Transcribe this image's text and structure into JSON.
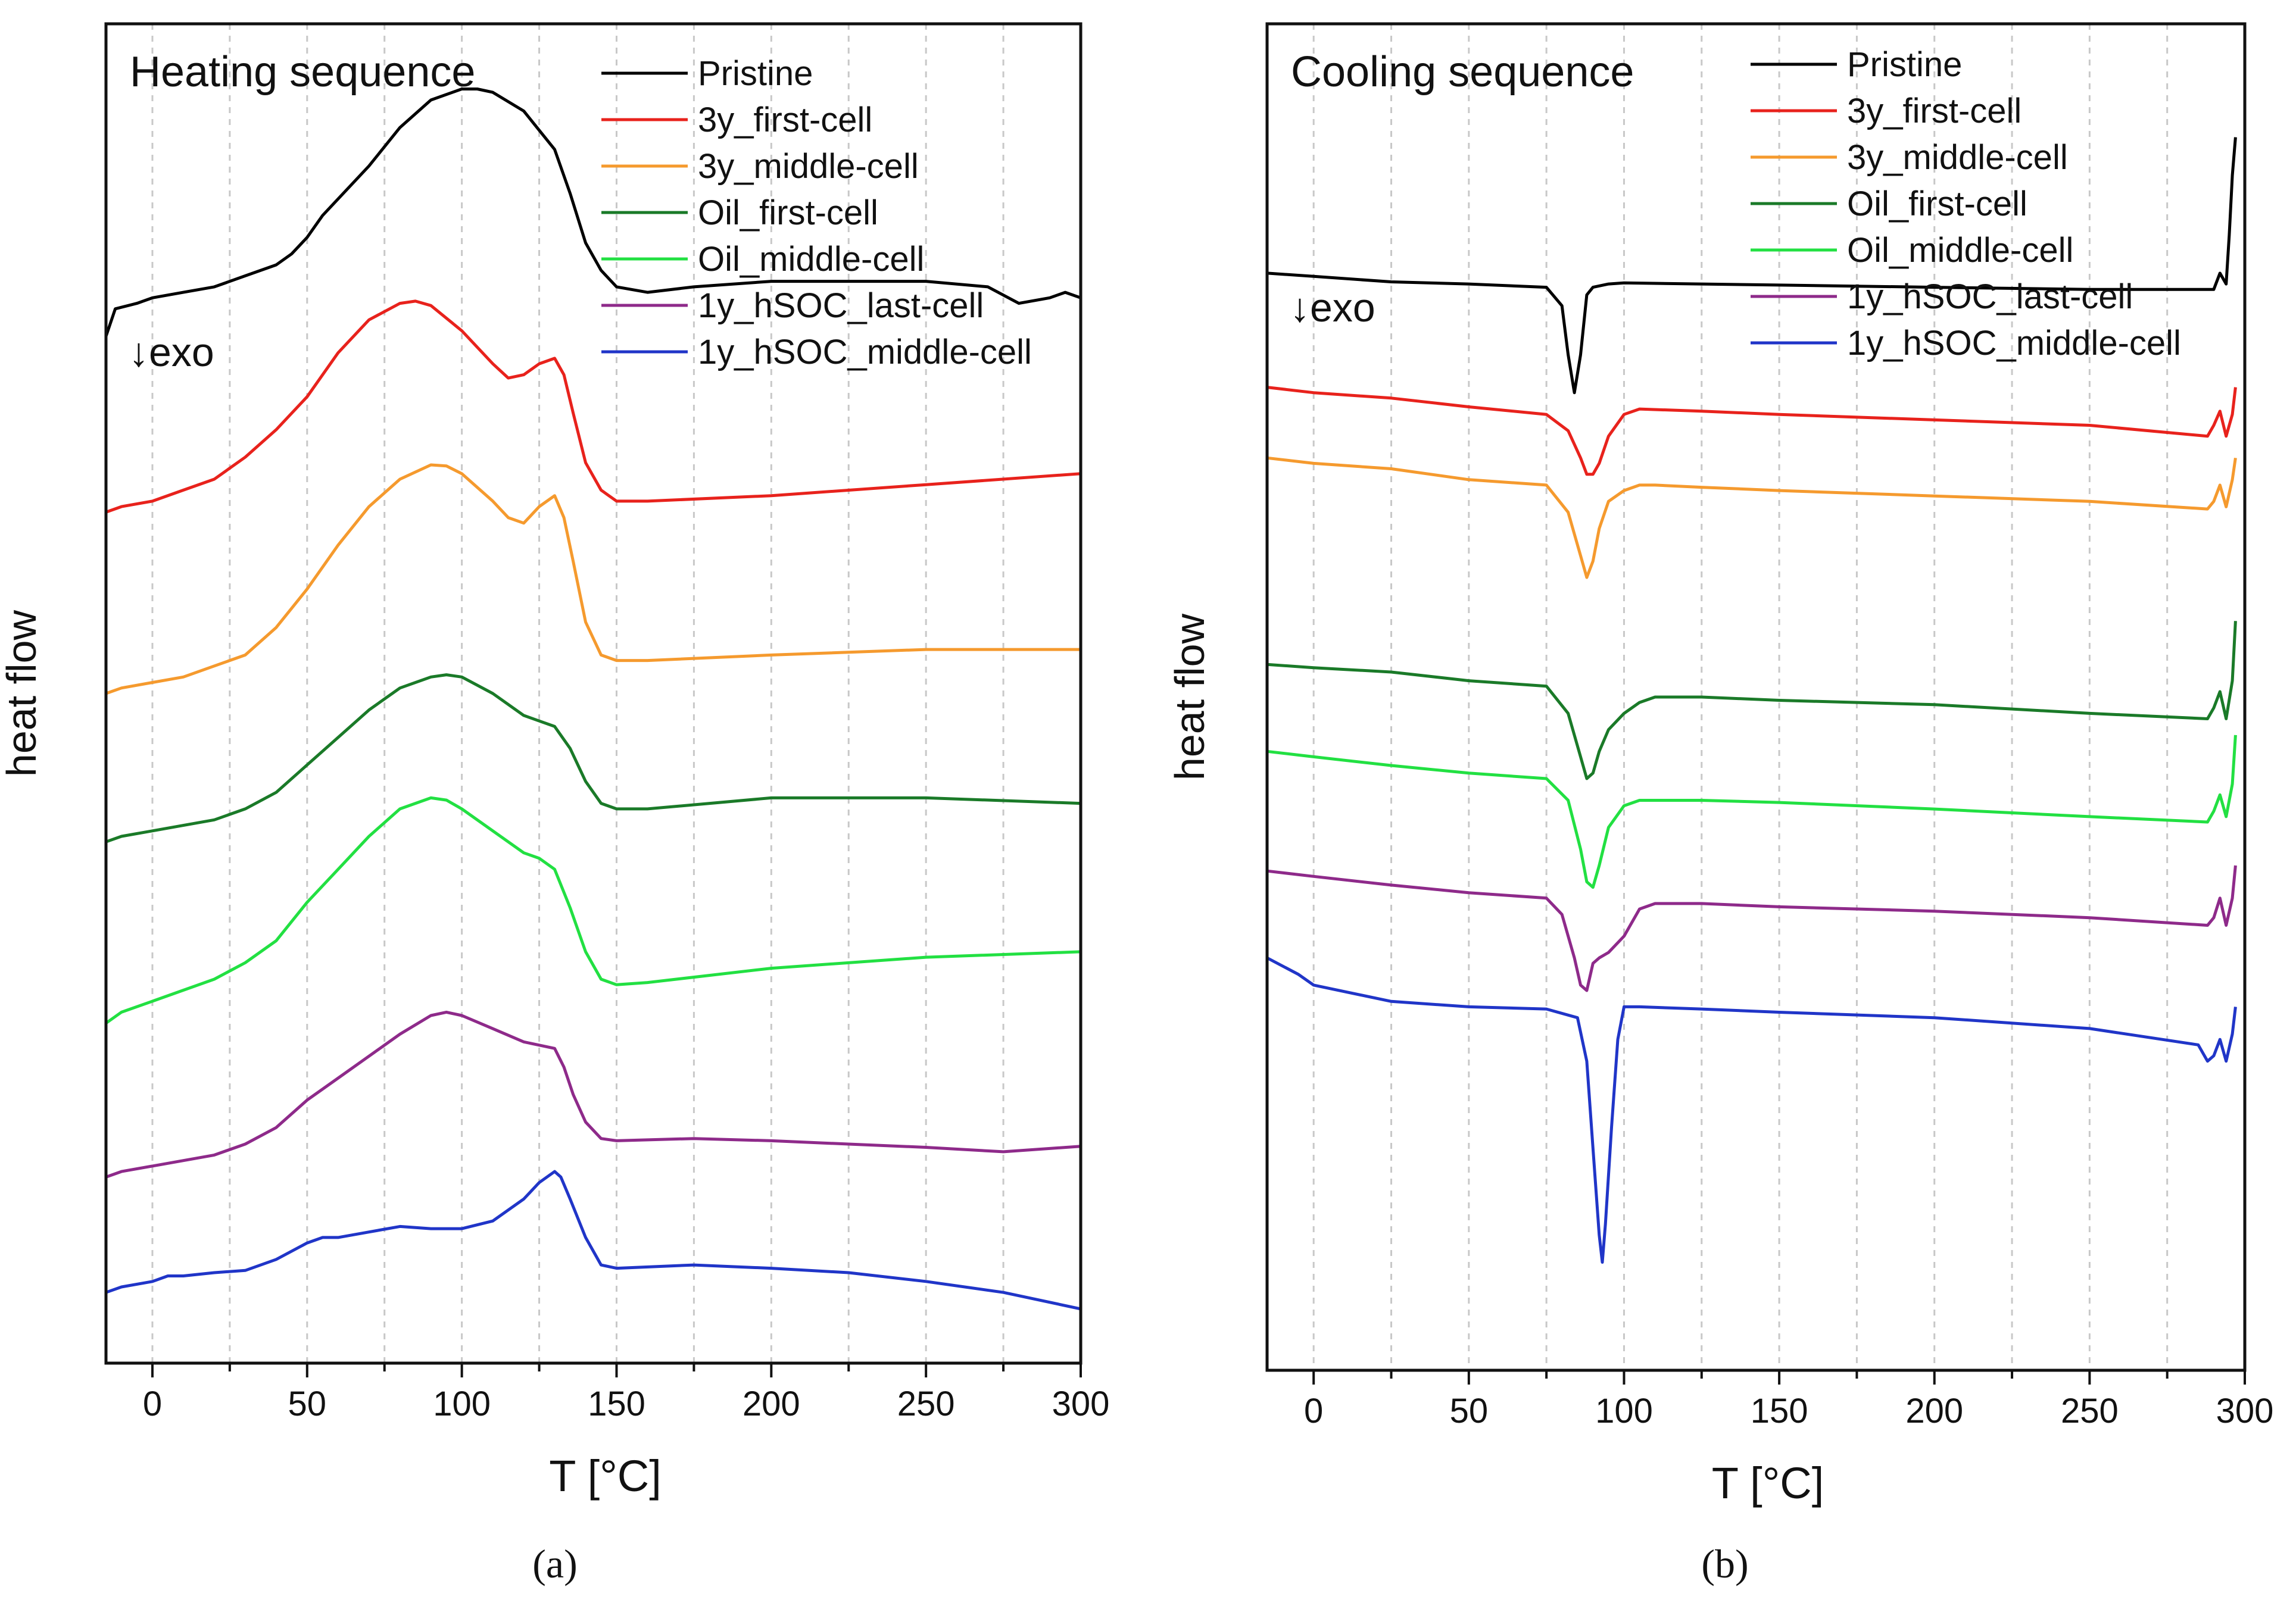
{
  "chart_data": [
    {
      "type": "line",
      "panel": "a",
      "caption": "(a)",
      "title": "Heating sequence",
      "annotation": "↓exo",
      "xlabel": "T [°C]",
      "ylabel": "heat flow",
      "xlim": [
        -15,
        300
      ],
      "xticks": [
        "0",
        "50",
        "100",
        "150",
        "200",
        "250",
        "300"
      ],
      "grid": "vertical dashed",
      "legend_position": "top-right",
      "series": [
        {
          "name": "Pristine",
          "color": "#000000",
          "x": [
            -15,
            -12,
            -5,
            0,
            10,
            20,
            30,
            40,
            45,
            50,
            55,
            60,
            70,
            80,
            90,
            100,
            105,
            110,
            120,
            130,
            135,
            140,
            145,
            150,
            160,
            175,
            200,
            225,
            250,
            270,
            280,
            290,
            295,
            300
          ],
          "y": [
            8.7,
            8.95,
            9.0,
            9.05,
            9.1,
            9.15,
            9.25,
            9.35,
            9.45,
            9.6,
            9.8,
            9.95,
            10.25,
            10.6,
            10.85,
            10.95,
            10.95,
            10.92,
            10.75,
            10.4,
            10.0,
            9.55,
            9.3,
            9.15,
            9.1,
            9.15,
            9.2,
            9.2,
            9.2,
            9.15,
            9.0,
            9.05,
            9.1,
            9.05
          ]
        },
        {
          "name": "3y_first-cell",
          "color": "#e8221c",
          "x": [
            -15,
            -10,
            0,
            10,
            20,
            30,
            40,
            50,
            60,
            70,
            80,
            85,
            90,
            100,
            110,
            115,
            120,
            125,
            130,
            133,
            136,
            140,
            145,
            150,
            160,
            200,
            250,
            300
          ],
          "y": [
            7.1,
            7.15,
            7.2,
            7.3,
            7.4,
            7.6,
            7.85,
            8.15,
            8.55,
            8.85,
            9.0,
            9.02,
            8.98,
            8.75,
            8.45,
            8.32,
            8.35,
            8.45,
            8.5,
            8.35,
            8.0,
            7.55,
            7.3,
            7.2,
            7.2,
            7.25,
            7.35,
            7.45
          ]
        },
        {
          "name": "3y_middle-cell",
          "color": "#f59a2e",
          "x": [
            -15,
            -10,
            0,
            10,
            20,
            30,
            40,
            50,
            60,
            70,
            80,
            90,
            95,
            100,
            110,
            115,
            120,
            125,
            130,
            133,
            136,
            140,
            145,
            150,
            160,
            200,
            250,
            300
          ],
          "y": [
            5.45,
            5.5,
            5.55,
            5.6,
            5.7,
            5.8,
            6.05,
            6.4,
            6.8,
            7.15,
            7.4,
            7.53,
            7.52,
            7.45,
            7.2,
            7.05,
            7.0,
            7.15,
            7.25,
            7.05,
            6.65,
            6.1,
            5.8,
            5.75,
            5.75,
            5.8,
            5.85,
            5.85
          ]
        },
        {
          "name": "Oil_first-cell",
          "color": "#1a7a28",
          "x": [
            -15,
            -10,
            0,
            10,
            20,
            30,
            40,
            50,
            60,
            70,
            80,
            90,
            95,
            100,
            110,
            120,
            125,
            130,
            135,
            140,
            145,
            150,
            160,
            200,
            250,
            300
          ],
          "y": [
            4.1,
            4.15,
            4.2,
            4.25,
            4.3,
            4.4,
            4.55,
            4.8,
            5.05,
            5.3,
            5.5,
            5.6,
            5.62,
            5.6,
            5.45,
            5.25,
            5.2,
            5.15,
            4.95,
            4.65,
            4.45,
            4.4,
            4.4,
            4.5,
            4.5,
            4.45
          ]
        },
        {
          "name": "Oil_middle-cell",
          "color": "#22e042",
          "x": [
            -15,
            -10,
            0,
            10,
            20,
            30,
            40,
            50,
            60,
            70,
            80,
            90,
            95,
            100,
            110,
            120,
            125,
            130,
            135,
            140,
            145,
            150,
            160,
            200,
            250,
            300
          ],
          "y": [
            2.45,
            2.55,
            2.65,
            2.75,
            2.85,
            3.0,
            3.2,
            3.55,
            3.85,
            4.15,
            4.4,
            4.5,
            4.48,
            4.4,
            4.2,
            4.0,
            3.95,
            3.85,
            3.5,
            3.1,
            2.85,
            2.8,
            2.82,
            2.95,
            3.05,
            3.1
          ]
        },
        {
          "name": "1y_hSOC_last-cell",
          "color": "#8e2a8a",
          "x": [
            -15,
            -10,
            0,
            10,
            20,
            30,
            40,
            50,
            60,
            70,
            80,
            90,
            95,
            100,
            110,
            120,
            125,
            130,
            133,
            136,
            140,
            145,
            150,
            175,
            200,
            225,
            250,
            275,
            300
          ],
          "y": [
            1.05,
            1.1,
            1.15,
            1.2,
            1.25,
            1.35,
            1.5,
            1.75,
            1.95,
            2.15,
            2.35,
            2.52,
            2.55,
            2.52,
            2.4,
            2.28,
            2.25,
            2.22,
            2.05,
            1.8,
            1.55,
            1.4,
            1.38,
            1.4,
            1.38,
            1.35,
            1.32,
            1.28,
            1.33
          ]
        },
        {
          "name": "1y_hSOC_middle-cell",
          "color": "#2035c8",
          "x": [
            -15,
            -10,
            0,
            5,
            10,
            20,
            30,
            40,
            50,
            55,
            60,
            70,
            80,
            90,
            100,
            110,
            120,
            125,
            130,
            132,
            135,
            140,
            145,
            150,
            175,
            200,
            225,
            250,
            275,
            300
          ],
          "y": [
            0.0,
            0.05,
            0.1,
            0.15,
            0.15,
            0.18,
            0.2,
            0.3,
            0.45,
            0.5,
            0.5,
            0.55,
            0.6,
            0.58,
            0.58,
            0.65,
            0.85,
            1.0,
            1.1,
            1.05,
            0.85,
            0.5,
            0.25,
            0.22,
            0.25,
            0.22,
            0.18,
            0.1,
            0.0,
            -0.15
          ]
        }
      ]
    },
    {
      "type": "line",
      "panel": "b",
      "caption": "(b)",
      "title": "Cooling sequence",
      "annotation": "↓exo",
      "xlabel": "T [°C]",
      "ylabel": "heat flow",
      "xlim": [
        -15,
        300
      ],
      "xticks": [
        "0",
        "50",
        "100",
        "150",
        "200",
        "250",
        "300"
      ],
      "grid": "vertical dashed",
      "legend_position": "top-right",
      "series": [
        {
          "name": "Pristine",
          "color": "#000000",
          "x": [
            -15,
            0,
            25,
            50,
            75,
            80,
            82,
            84,
            86,
            88,
            90,
            95,
            100,
            125,
            150,
            200,
            250,
            290,
            292,
            294,
            295,
            296,
            297
          ],
          "y": [
            9.05,
            9.02,
            8.97,
            8.95,
            8.92,
            8.75,
            8.3,
            7.95,
            8.3,
            8.85,
            8.92,
            8.95,
            8.96,
            8.95,
            8.94,
            8.92,
            8.9,
            8.9,
            9.05,
            8.95,
            9.4,
            9.95,
            10.3
          ]
        },
        {
          "name": "3y_first-cell",
          "color": "#e8221c",
          "x": [
            -15,
            0,
            25,
            50,
            75,
            82,
            86,
            88,
            90,
            92,
            95,
            100,
            105,
            125,
            150,
            200,
            250,
            288,
            290,
            292,
            294,
            296,
            297
          ],
          "y": [
            8.0,
            7.95,
            7.9,
            7.82,
            7.75,
            7.6,
            7.35,
            7.2,
            7.2,
            7.3,
            7.55,
            7.75,
            7.8,
            7.78,
            7.75,
            7.7,
            7.65,
            7.55,
            7.65,
            7.78,
            7.55,
            7.75,
            8.0
          ]
        },
        {
          "name": "3y_middle-cell",
          "color": "#f59a2e",
          "x": [
            -15,
            0,
            25,
            50,
            75,
            82,
            86,
            88,
            90,
            92,
            95,
            100,
            105,
            110,
            125,
            150,
            200,
            250,
            288,
            290,
            292,
            294,
            296,
            297
          ],
          "y": [
            7.35,
            7.3,
            7.25,
            7.15,
            7.1,
            6.85,
            6.45,
            6.25,
            6.4,
            6.7,
            6.95,
            7.05,
            7.1,
            7.1,
            7.08,
            7.05,
            7.0,
            6.95,
            6.88,
            6.95,
            7.1,
            6.9,
            7.15,
            7.35
          ]
        },
        {
          "name": "Oil_first-cell",
          "color": "#1a7a28",
          "x": [
            -15,
            0,
            25,
            50,
            75,
            82,
            86,
            88,
            90,
            92,
            95,
            100,
            105,
            110,
            125,
            150,
            200,
            250,
            288,
            290,
            292,
            294,
            296,
            297
          ],
          "y": [
            5.45,
            5.42,
            5.38,
            5.3,
            5.25,
            5.0,
            4.6,
            4.4,
            4.45,
            4.65,
            4.85,
            5.0,
            5.1,
            5.15,
            5.15,
            5.12,
            5.08,
            5.0,
            4.95,
            5.05,
            5.2,
            4.95,
            5.3,
            5.85
          ]
        },
        {
          "name": "Oil_middle-cell",
          "color": "#22e042",
          "x": [
            -15,
            0,
            25,
            50,
            75,
            82,
            86,
            88,
            90,
            92,
            95,
            100,
            105,
            125,
            150,
            200,
            250,
            288,
            290,
            292,
            294,
            296,
            297
          ],
          "y": [
            4.65,
            4.6,
            4.52,
            4.45,
            4.4,
            4.2,
            3.75,
            3.45,
            3.4,
            3.6,
            3.95,
            4.15,
            4.2,
            4.2,
            4.18,
            4.12,
            4.05,
            4.0,
            4.1,
            4.25,
            4.05,
            4.35,
            4.8
          ]
        },
        {
          "name": "1y_hSOC_last-cell",
          "color": "#8e2a8a",
          "x": [
            -15,
            0,
            25,
            50,
            75,
            80,
            84,
            86,
            88,
            90,
            92,
            95,
            100,
            105,
            110,
            125,
            150,
            200,
            250,
            288,
            290,
            292,
            294,
            296,
            297
          ],
          "y": [
            3.55,
            3.5,
            3.42,
            3.35,
            3.3,
            3.15,
            2.75,
            2.5,
            2.45,
            2.7,
            2.75,
            2.8,
            2.95,
            3.2,
            3.25,
            3.25,
            3.22,
            3.18,
            3.12,
            3.05,
            3.12,
            3.3,
            3.05,
            3.3,
            3.6
          ]
        },
        {
          "name": "1y_hSOC_middle-cell",
          "color": "#2035c8",
          "x": [
            -15,
            -5,
            0,
            25,
            50,
            75,
            85,
            88,
            90,
            92,
            93,
            94,
            96,
            98,
            100,
            105,
            125,
            150,
            200,
            250,
            285,
            288,
            290,
            292,
            294,
            296,
            297
          ],
          "y": [
            2.75,
            2.6,
            2.5,
            2.35,
            2.3,
            2.28,
            2.2,
            1.8,
            1.0,
            0.2,
            -0.05,
            0.3,
            1.2,
            2.0,
            2.3,
            2.3,
            2.28,
            2.25,
            2.2,
            2.1,
            1.95,
            1.8,
            1.85,
            2.0,
            1.8,
            2.05,
            2.3
          ]
        }
      ]
    }
  ]
}
